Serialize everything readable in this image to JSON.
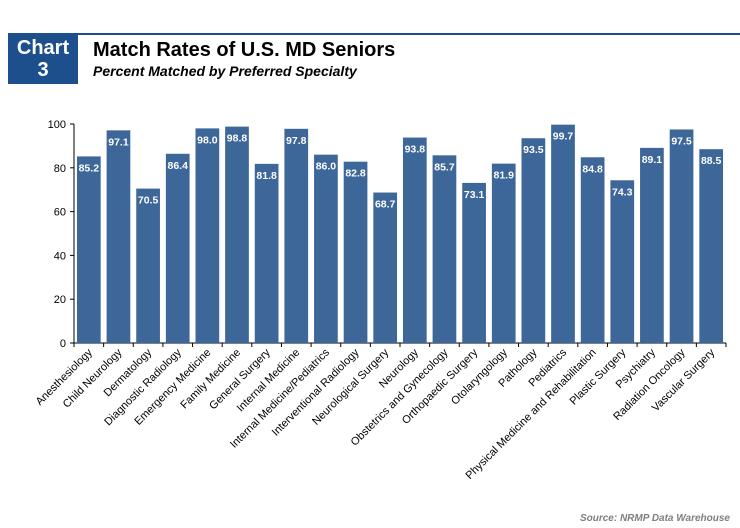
{
  "badge": {
    "line1": "Chart",
    "line2": "3"
  },
  "header": {
    "title": "Match Rates of U.S. MD Seniors",
    "subtitle": "Percent Matched by Preferred Specialty"
  },
  "source": "Source: NRMP Data Warehouse",
  "colors": {
    "bar": "#3d6699",
    "badge": "#1d4f8c",
    "label": "#ffffff",
    "axis": "#000000"
  },
  "chart_data": {
    "type": "bar",
    "title": "Match Rates of U.S. MD Seniors",
    "subtitle": "Percent Matched by Preferred Specialty",
    "xlabel": "",
    "ylabel": "",
    "ylim": [
      0,
      100
    ],
    "yticks": [
      0,
      20,
      40,
      60,
      80,
      100
    ],
    "grid": false,
    "categories": [
      "Anesthesiology",
      "Child Neurology",
      "Dermatology",
      "Diagnostic Radiology",
      "Emergency Medicine",
      "Family Medicine",
      "General Surgery",
      "Internal Medicine",
      "Internal Medicine/Pediatrics",
      "Interventional Radiology",
      "Neurological Surgery",
      "Neurology",
      "Obstetrics and Gynecology",
      "Orthopaedic Surgery",
      "Otolaryngology",
      "Pathology",
      "Pediatrics",
      "Physical Medicine and Rehabilitation",
      "Plastic Surgery",
      "Psychiatry",
      "Radiation Oncology",
      "Vascular Surgery"
    ],
    "values": [
      85.2,
      97.1,
      70.5,
      86.4,
      98.0,
      98.8,
      81.8,
      97.8,
      86.0,
      82.8,
      68.7,
      93.8,
      85.7,
      73.1,
      81.9,
      93.5,
      99.7,
      84.8,
      74.3,
      89.1,
      97.5,
      88.5
    ],
    "value_labels": [
      "85.2",
      "97.1",
      "70.5",
      "86.4",
      "98.0",
      "98.8",
      "81.8",
      "97.8",
      "86.0",
      "82.8",
      "68.7",
      "93.8",
      "85.7",
      "73.1",
      "81.9",
      "93.5",
      "99.7",
      "84.8",
      "74.3",
      "89.1",
      "97.5",
      "88.5"
    ]
  }
}
